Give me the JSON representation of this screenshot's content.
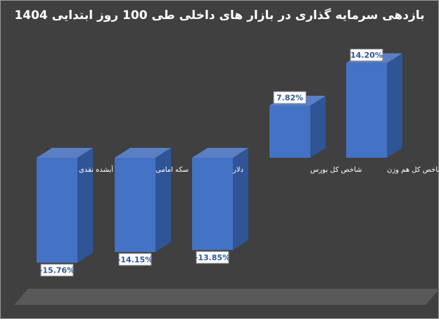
{
  "chart_data": {
    "type": "bar",
    "title": "بازدهی سرمایه گذاری در بازار های داخلی طی 100 روز ابتدایی 1404",
    "categories": [
      "طلای آبشده نقدی",
      "سکه امامی",
      "دلار",
      "شاخص کل بورس",
      "شاخص کل هم وزن"
    ],
    "values": [
      -15.76,
      -14.15,
      -13.85,
      7.82,
      14.2
    ],
    "data_labels": [
      "-15.76%",
      "-14.15%",
      "-13.85%",
      "7.82%",
      "14.20%"
    ],
    "ylim": [
      -16,
      15
    ],
    "colors": {
      "bar_front": "#4472C4",
      "bar_side": "#2F5597",
      "bar_top": "#5B7FC4",
      "background": "#404040",
      "floor": "#595959"
    }
  }
}
